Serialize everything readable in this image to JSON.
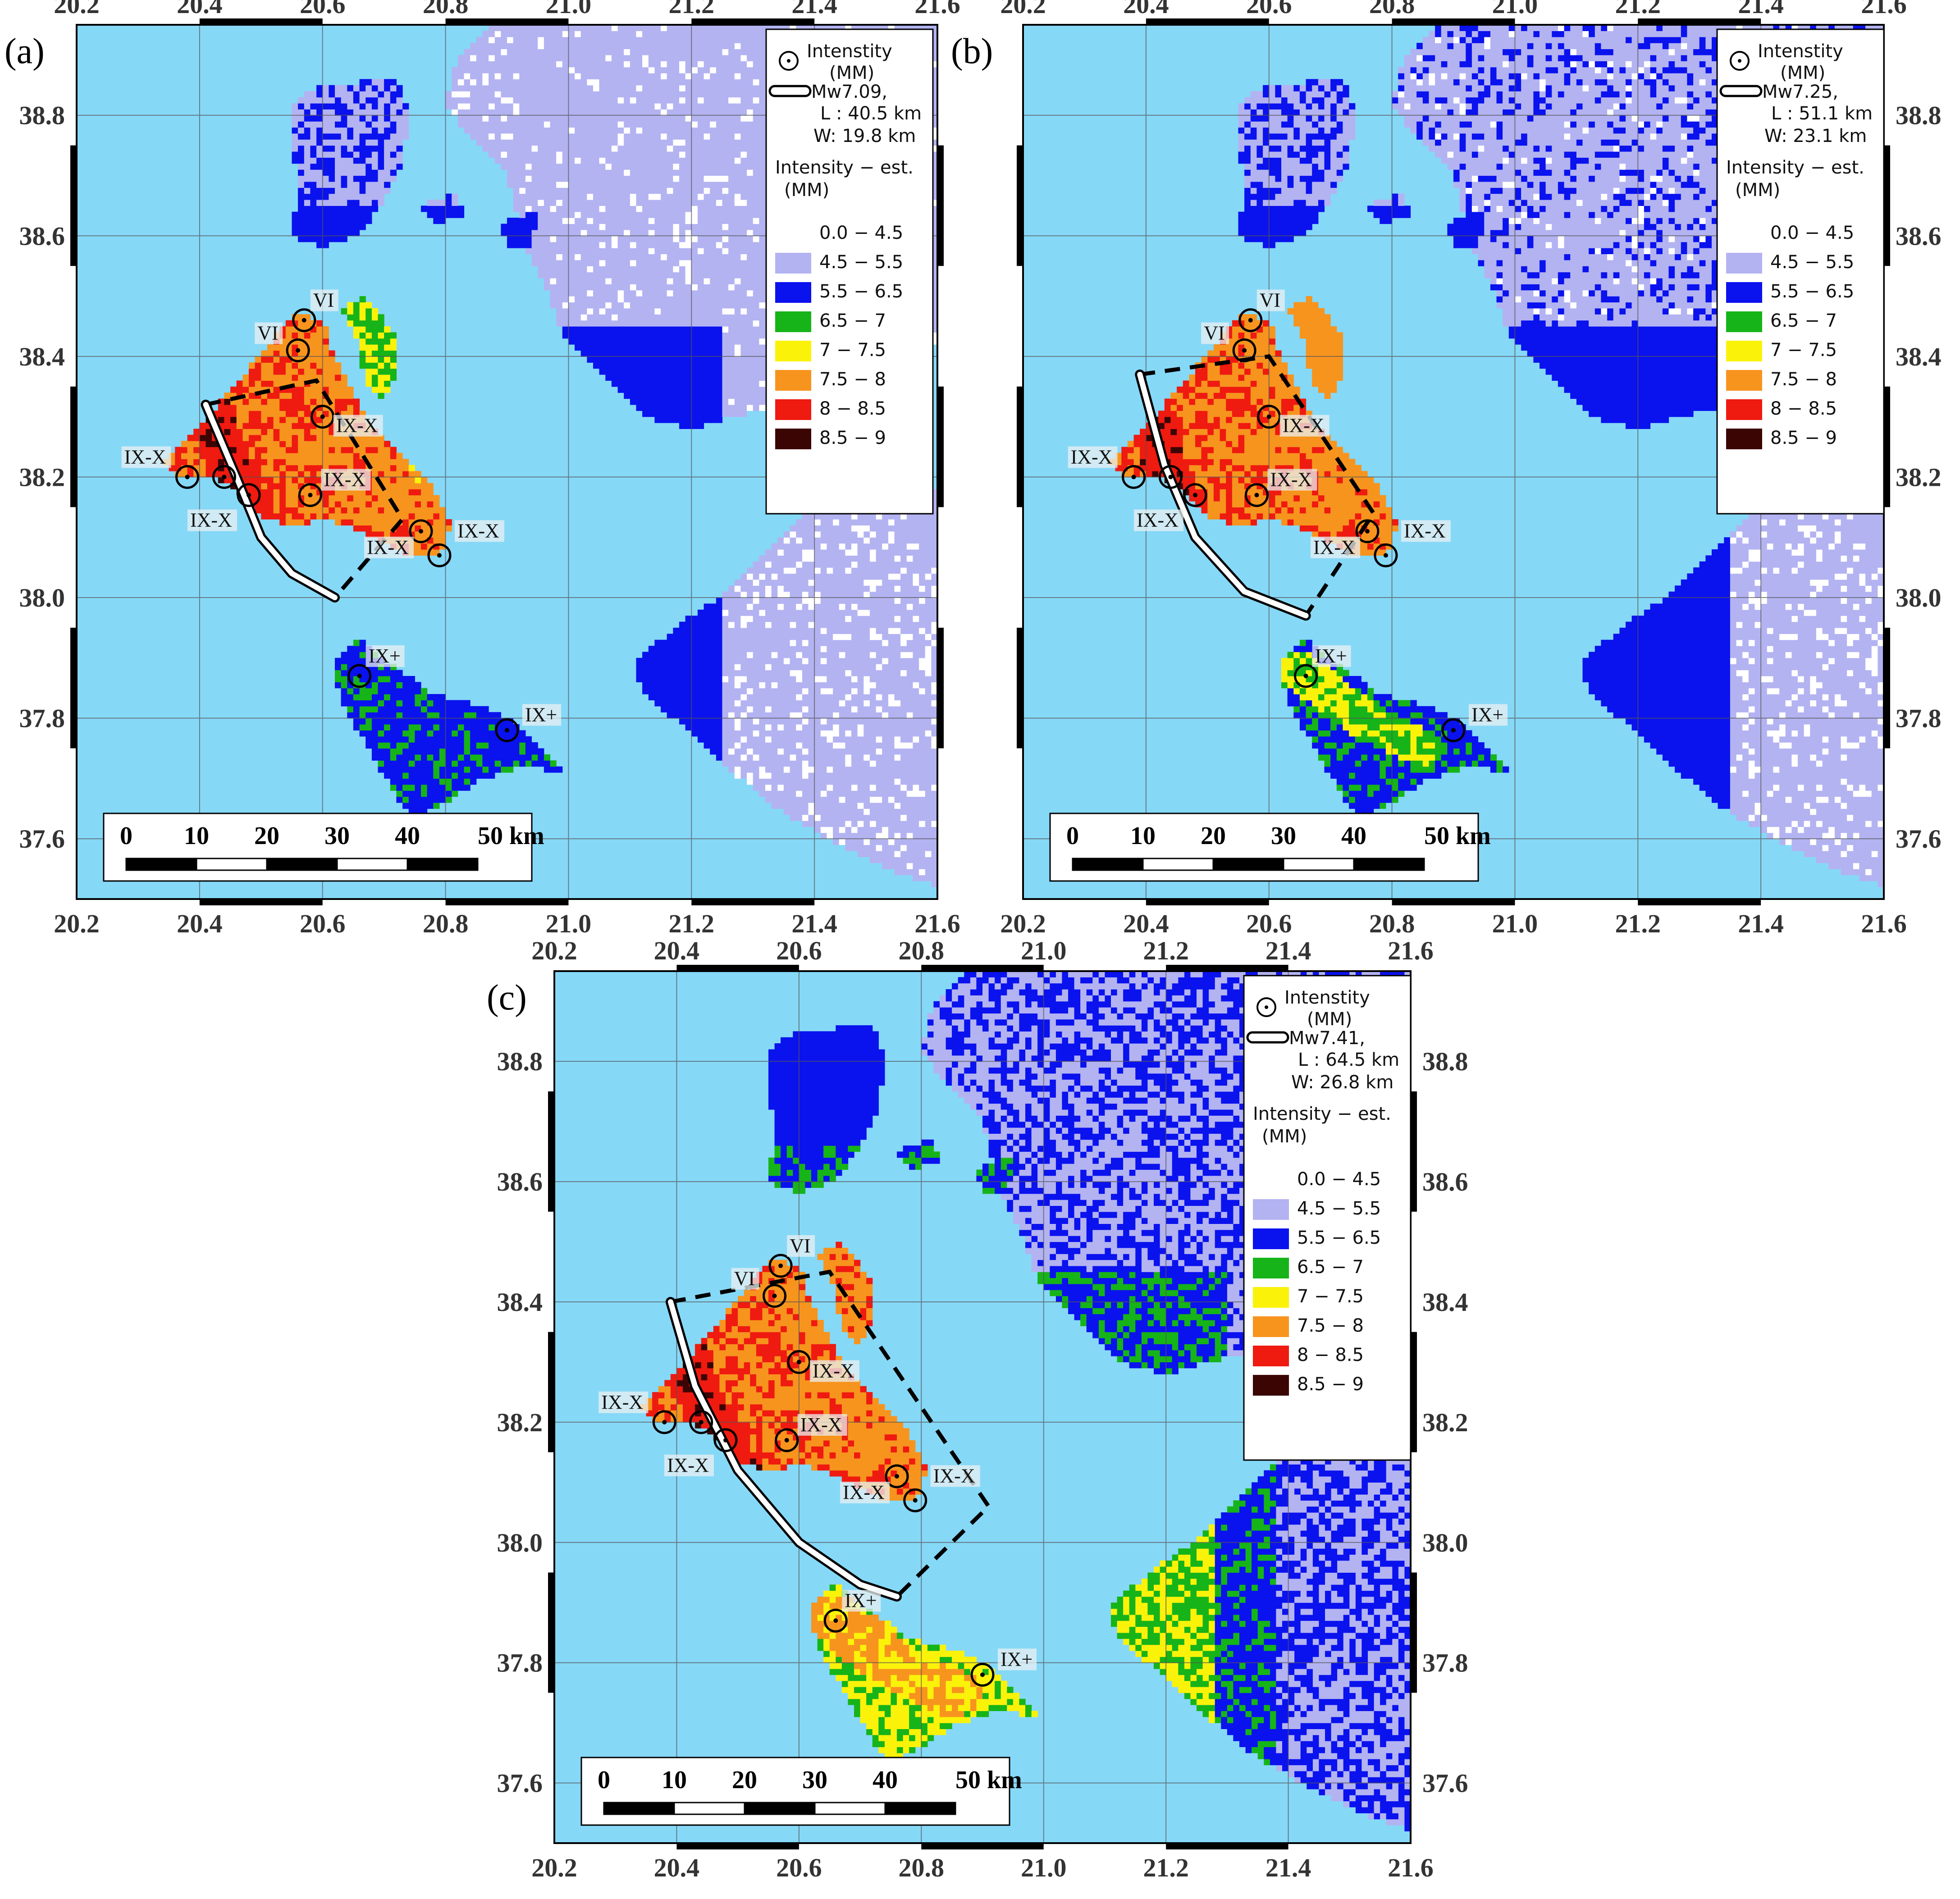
{
  "colors": {
    "sea": "#86d8f7",
    "class_0": "#ffffff",
    "class_1": "#b3b3f2",
    "class_2": "#0a12ee",
    "class_3": "#16b418",
    "class_4": "#fbf20a",
    "class_5": "#f7941e",
    "class_6": "#ef1a10",
    "class_7": "#3b0504",
    "rupture": "#ffffff",
    "rupture_outline": "#000000",
    "grid": "#555555"
  },
  "axes": {
    "x_ticks": [
      "20.2",
      "20.4",
      "20.6",
      "20.8",
      "21.0",
      "21.2",
      "21.4",
      "21.6"
    ],
    "y_ticks": [
      "38.8",
      "38.6",
      "38.4",
      "38.2",
      "38.0",
      "37.8",
      "37.6"
    ],
    "lon_range": [
      20.2,
      21.6
    ],
    "lat_range": [
      37.5,
      38.95
    ]
  },
  "legend": {
    "obs_title_1": "Intenstity",
    "obs_title_2": "(MM)",
    "est_title_1": "Intensity − est.",
    "est_title_2": "(MM)",
    "classes": [
      "0.0 − 4.5",
      "4.5 − 5.5",
      "5.5 − 6.5",
      "6.5 − 7",
      "7 − 7.5",
      "7.5 − 8",
      "8 − 8.5",
      "8.5 − 9"
    ]
  },
  "scale_bar": {
    "labels": [
      "0",
      "10",
      "20",
      "30",
      "40",
      "50 km"
    ]
  },
  "observations": [
    {
      "label": "VI",
      "lon": 20.57,
      "lat": 38.46
    },
    {
      "label": "VI",
      "lon": 20.56,
      "lat": 38.41
    },
    {
      "label": "IX-X",
      "lon": 20.6,
      "lat": 38.3
    },
    {
      "label": "IX-X",
      "lon": 20.38,
      "lat": 38.2
    },
    {
      "label": "IX-X",
      "lon": 20.44,
      "lat": 38.2
    },
    {
      "label": "IX-X",
      "lon": 20.48,
      "lat": 38.17
    },
    {
      "label": "IX-X",
      "lon": 20.58,
      "lat": 38.17
    },
    {
      "label": "IX-X",
      "lon": 20.76,
      "lat": 38.11
    },
    {
      "label": "IX-X",
      "lon": 20.79,
      "lat": 38.07
    },
    {
      "label": "IX+",
      "lon": 20.66,
      "lat": 37.87
    },
    {
      "label": "IX+",
      "lon": 20.9,
      "lat": 37.78
    }
  ],
  "panels": [
    {
      "letter": "(a)",
      "magnitude": "Mw7.09,",
      "length": "L : 40.5 km",
      "width": "W: 19.8 km",
      "intensity_shift": 0,
      "fault_trace": [
        [
          20.41,
          38.32
        ],
        [
          20.46,
          38.2
        ],
        [
          20.5,
          38.1
        ],
        [
          20.55,
          38.04
        ],
        [
          20.62,
          38.0
        ]
      ],
      "fault_box": [
        [
          20.41,
          38.32
        ],
        [
          20.59,
          38.36
        ],
        [
          20.73,
          38.13
        ],
        [
          20.62,
          38.0
        ]
      ]
    },
    {
      "letter": "(b)",
      "magnitude": "Mw7.25,",
      "length": "L : 51.1 km",
      "width": "W: 23.1 km",
      "intensity_shift": 1,
      "fault_trace": [
        [
          20.39,
          38.37
        ],
        [
          20.43,
          38.22
        ],
        [
          20.48,
          38.1
        ],
        [
          20.56,
          38.01
        ],
        [
          20.66,
          37.97
        ]
      ],
      "fault_box": [
        [
          20.39,
          38.37
        ],
        [
          20.6,
          38.4
        ],
        [
          20.77,
          38.14
        ],
        [
          20.66,
          37.97
        ]
      ]
    },
    {
      "letter": "(c)",
      "magnitude": "Mw7.41,",
      "length": "L : 64.5 km",
      "width": "W: 26.8 km",
      "intensity_shift": 2,
      "fault_trace": [
        [
          20.39,
          38.4
        ],
        [
          20.43,
          38.26
        ],
        [
          20.5,
          38.12
        ],
        [
          20.6,
          38.0
        ],
        [
          20.7,
          37.93
        ],
        [
          20.76,
          37.91
        ]
      ],
      "fault_box": [
        [
          20.39,
          38.4
        ],
        [
          20.65,
          38.45
        ],
        [
          20.91,
          38.06
        ],
        [
          20.76,
          37.91
        ]
      ]
    }
  ]
}
